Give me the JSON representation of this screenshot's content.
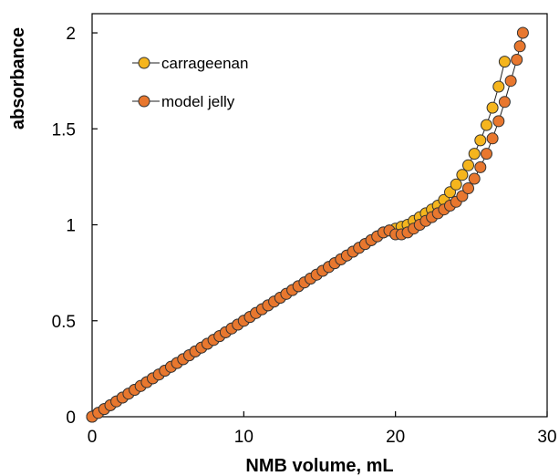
{
  "chart_data": {
    "type": "scatter",
    "title": "",
    "xlabel": "NMB volume, mL",
    "ylabel": "absorbance",
    "xlim": [
      0,
      30
    ],
    "ylim": [
      0,
      2.1
    ],
    "x_ticks": [
      "0",
      "10",
      "20",
      "30"
    ],
    "y_ticks": [
      "0",
      "0.5",
      "1",
      "1.5",
      "2"
    ],
    "x_tick_values": [
      0,
      10,
      20,
      30
    ],
    "y_tick_values": [
      0,
      0.5,
      1,
      1.5,
      2
    ],
    "grid": false,
    "legend_position": "top-left",
    "series": [
      {
        "name": "carrageenan",
        "color": "#F5B51D",
        "points": [
          [
            0,
            0
          ],
          [
            0.4,
            0.02
          ],
          [
            0.8,
            0.04
          ],
          [
            1.2,
            0.06
          ],
          [
            1.6,
            0.08
          ],
          [
            2.0,
            0.1
          ],
          [
            2.4,
            0.12
          ],
          [
            2.8,
            0.14
          ],
          [
            3.2,
            0.16
          ],
          [
            3.6,
            0.18
          ],
          [
            4.0,
            0.2
          ],
          [
            4.4,
            0.22
          ],
          [
            4.8,
            0.24
          ],
          [
            5.2,
            0.26
          ],
          [
            5.6,
            0.28
          ],
          [
            6.0,
            0.3
          ],
          [
            6.4,
            0.32
          ],
          [
            6.8,
            0.34
          ],
          [
            7.2,
            0.36
          ],
          [
            7.6,
            0.38
          ],
          [
            8.0,
            0.4
          ],
          [
            8.4,
            0.42
          ],
          [
            8.8,
            0.44
          ],
          [
            9.2,
            0.46
          ],
          [
            9.6,
            0.48
          ],
          [
            10.0,
            0.5
          ],
          [
            10.4,
            0.52
          ],
          [
            10.8,
            0.54
          ],
          [
            11.2,
            0.56
          ],
          [
            11.6,
            0.58
          ],
          [
            12.0,
            0.6
          ],
          [
            12.4,
            0.62
          ],
          [
            12.8,
            0.64
          ],
          [
            13.2,
            0.66
          ],
          [
            13.6,
            0.68
          ],
          [
            14.0,
            0.7
          ],
          [
            14.4,
            0.72
          ],
          [
            14.8,
            0.74
          ],
          [
            15.2,
            0.76
          ],
          [
            15.6,
            0.78
          ],
          [
            16.0,
            0.8
          ],
          [
            16.4,
            0.82
          ],
          [
            16.8,
            0.84
          ],
          [
            17.2,
            0.86
          ],
          [
            17.6,
            0.88
          ],
          [
            18.0,
            0.9
          ],
          [
            18.4,
            0.92
          ],
          [
            18.8,
            0.94
          ],
          [
            19.2,
            0.96
          ],
          [
            19.6,
            0.97
          ],
          [
            20.0,
            0.98
          ],
          [
            20.4,
            0.99
          ],
          [
            20.8,
            1.0
          ],
          [
            21.2,
            1.02
          ],
          [
            21.6,
            1.04
          ],
          [
            22.0,
            1.06
          ],
          [
            22.4,
            1.08
          ],
          [
            22.8,
            1.1
          ],
          [
            23.2,
            1.13
          ],
          [
            23.6,
            1.17
          ],
          [
            24.0,
            1.21
          ],
          [
            24.4,
            1.26
          ],
          [
            24.8,
            1.31
          ],
          [
            25.2,
            1.37
          ],
          [
            25.6,
            1.44
          ],
          [
            26.0,
            1.52
          ],
          [
            26.4,
            1.61
          ],
          [
            26.8,
            1.72
          ],
          [
            27.2,
            1.85
          ]
        ]
      },
      {
        "name": "model jelly",
        "color": "#E8772E",
        "points": [
          [
            0,
            0
          ],
          [
            0.4,
            0.02
          ],
          [
            0.8,
            0.04
          ],
          [
            1.2,
            0.06
          ],
          [
            1.6,
            0.08
          ],
          [
            2.0,
            0.1
          ],
          [
            2.4,
            0.12
          ],
          [
            2.8,
            0.14
          ],
          [
            3.2,
            0.16
          ],
          [
            3.6,
            0.18
          ],
          [
            4.0,
            0.2
          ],
          [
            4.4,
            0.22
          ],
          [
            4.8,
            0.24
          ],
          [
            5.2,
            0.26
          ],
          [
            5.6,
            0.28
          ],
          [
            6.0,
            0.3
          ],
          [
            6.4,
            0.32
          ],
          [
            6.8,
            0.34
          ],
          [
            7.2,
            0.36
          ],
          [
            7.6,
            0.38
          ],
          [
            8.0,
            0.4
          ],
          [
            8.4,
            0.42
          ],
          [
            8.8,
            0.44
          ],
          [
            9.2,
            0.46
          ],
          [
            9.6,
            0.48
          ],
          [
            10.0,
            0.5
          ],
          [
            10.4,
            0.52
          ],
          [
            10.8,
            0.54
          ],
          [
            11.2,
            0.56
          ],
          [
            11.6,
            0.58
          ],
          [
            12.0,
            0.6
          ],
          [
            12.4,
            0.62
          ],
          [
            12.8,
            0.64
          ],
          [
            13.2,
            0.66
          ],
          [
            13.6,
            0.68
          ],
          [
            14.0,
            0.7
          ],
          [
            14.4,
            0.72
          ],
          [
            14.8,
            0.74
          ],
          [
            15.2,
            0.76
          ],
          [
            15.6,
            0.78
          ],
          [
            16.0,
            0.8
          ],
          [
            16.4,
            0.82
          ],
          [
            16.8,
            0.84
          ],
          [
            17.2,
            0.86
          ],
          [
            17.6,
            0.88
          ],
          [
            18.0,
            0.9
          ],
          [
            18.4,
            0.92
          ],
          [
            18.8,
            0.94
          ],
          [
            19.2,
            0.96
          ],
          [
            19.6,
            0.97
          ],
          [
            20.0,
            0.95
          ],
          [
            20.4,
            0.95
          ],
          [
            20.8,
            0.96
          ],
          [
            21.2,
            0.98
          ],
          [
            21.6,
            1.0
          ],
          [
            22.0,
            1.02
          ],
          [
            22.4,
            1.04
          ],
          [
            22.8,
            1.06
          ],
          [
            23.2,
            1.08
          ],
          [
            23.6,
            1.1
          ],
          [
            24.0,
            1.12
          ],
          [
            24.4,
            1.15
          ],
          [
            24.8,
            1.19
          ],
          [
            25.2,
            1.24
          ],
          [
            25.6,
            1.3
          ],
          [
            26.0,
            1.37
          ],
          [
            26.4,
            1.45
          ],
          [
            26.8,
            1.54
          ],
          [
            27.2,
            1.64
          ],
          [
            27.6,
            1.75
          ],
          [
            28.0,
            1.86
          ],
          [
            28.2,
            1.93
          ],
          [
            28.4,
            2.0
          ]
        ]
      }
    ]
  }
}
